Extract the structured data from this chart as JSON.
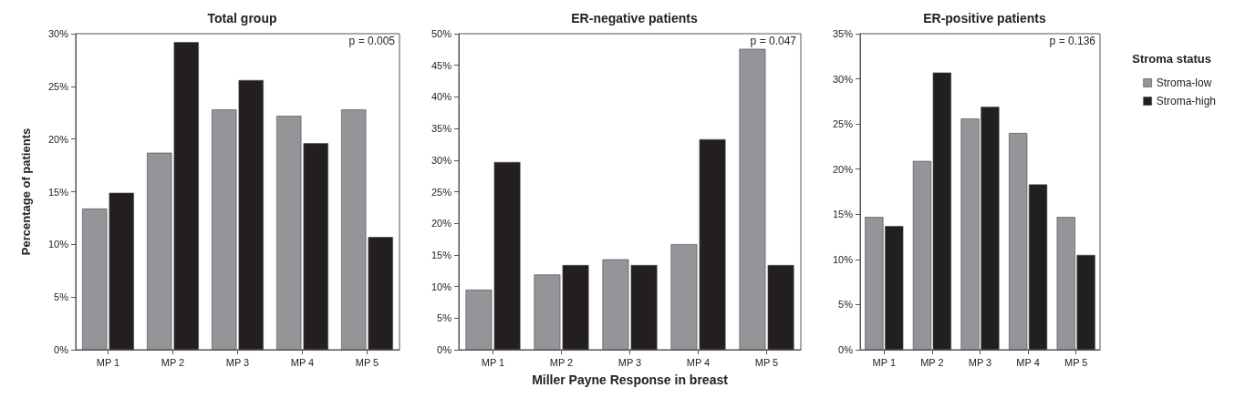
{
  "chart_data": [
    {
      "type": "bar",
      "title": "Total group",
      "ylabel": "Percentage of patients",
      "categories": [
        "MP 1",
        "MP 2",
        "MP 3",
        "MP 4",
        "MP 5"
      ],
      "series": [
        {
          "color": "#939598",
          "values": [
            13.4,
            18.7,
            22.8,
            22.2,
            22.8
          ]
        },
        {
          "color": "#231f20",
          "values": [
            14.9,
            29.2,
            25.6,
            19.6,
            10.7
          ]
        }
      ],
      "ylim": [
        0,
        30
      ],
      "yticks": [
        {
          "value": 0,
          "label": "0%"
        },
        {
          "value": 5,
          "label": "5%"
        },
        {
          "value": 10,
          "label": "10%"
        },
        {
          "value": 15,
          "label": "15%"
        },
        {
          "value": 20,
          "label": "20%"
        },
        {
          "value": 25,
          "label": "25%"
        },
        {
          "value": 30,
          "label": "30%"
        }
      ],
      "annotations": [
        "p = 0.005"
      ],
      "grid": false,
      "legend": false
    },
    {
      "type": "bar",
      "title": "ER-negative patients",
      "xlabel": "Miller Payne Response in breast",
      "categories": [
        "MP 1",
        "MP 2",
        "MP 3",
        "MP 4",
        "MP 5"
      ],
      "series": [
        {
          "color": "#939598",
          "values": [
            9.5,
            11.9,
            14.3,
            16.7,
            47.6
          ]
        },
        {
          "color": "#231f20",
          "values": [
            29.7,
            13.4,
            13.4,
            33.3,
            13.4
          ]
        }
      ],
      "ylim": [
        0,
        50
      ],
      "yticks": [
        {
          "value": 0,
          "label": "0%"
        },
        {
          "value": 5,
          "label": "5%"
        },
        {
          "value": 10,
          "label": "10%"
        },
        {
          "value": 15,
          "label": "15%"
        },
        {
          "value": 20,
          "label": "20%"
        },
        {
          "value": 25,
          "label": "25%"
        },
        {
          "value": 30,
          "label": "30%"
        },
        {
          "value": 35,
          "label": "35%"
        },
        {
          "value": 40,
          "label": "40%"
        },
        {
          "value": 45,
          "label": "45%"
        },
        {
          "value": 50,
          "label": "50%"
        }
      ],
      "annotations": [
        "p = 0.047"
      ],
      "grid": false,
      "legend": false
    },
    {
      "type": "bar",
      "title": "ER-positive patients",
      "legend_title": "Stroma status",
      "categories": [
        "MP 1",
        "MP 2",
        "MP 3",
        "MP 4",
        "MP 5"
      ],
      "series": [
        {
          "name": "Stroma-low",
          "color": "#939598",
          "values": [
            14.7,
            20.9,
            25.6,
            24.0,
            14.7
          ]
        },
        {
          "name": "Stroma-high",
          "color": "#231f20",
          "values": [
            13.7,
            30.7,
            26.9,
            18.3,
            10.5
          ]
        }
      ],
      "ylim": [
        0,
        35
      ],
      "yticks": [
        {
          "value": 0,
          "label": "0%"
        },
        {
          "value": 5,
          "label": "5%"
        },
        {
          "value": 10,
          "label": "10%"
        },
        {
          "value": 15,
          "label": "15%"
        },
        {
          "value": 20,
          "label": "20%"
        },
        {
          "value": 25,
          "label": "25%"
        },
        {
          "value": 30,
          "label": "30%"
        },
        {
          "value": 35,
          "label": "35%"
        }
      ],
      "annotations": [
        "p = 0.136"
      ],
      "grid": false,
      "legend": "right"
    }
  ]
}
